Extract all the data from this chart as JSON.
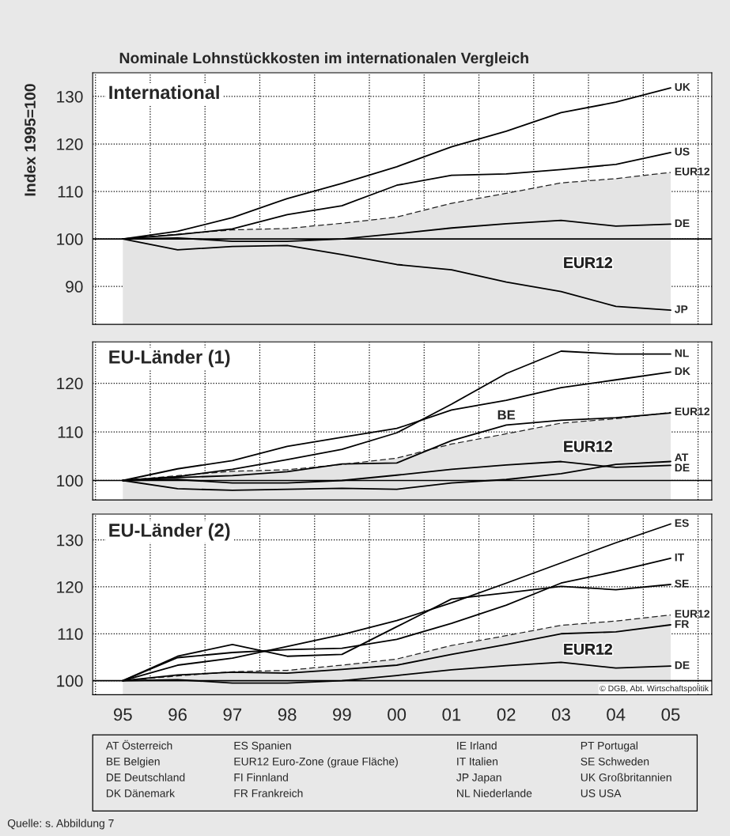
{
  "chart_data": [
    {
      "type": "line",
      "title": "Nominale Lohnstückkosten im internationalen Vergleich",
      "ylabel": "Index 1995=100",
      "subtitle": "International",
      "categories": [
        "95",
        "96",
        "97",
        "98",
        "99",
        "00",
        "01",
        "02",
        "03",
        "04",
        "05"
      ],
      "series": [
        {
          "type": "area",
          "name": "EUR12",
          "color": "#e4e4e4",
          "line_style": "dashed",
          "values": [
            100,
            101.0,
            101.9,
            102.2,
            103.3,
            104.6,
            107.5,
            109.6,
            111.8,
            112.7,
            114.0
          ]
        },
        {
          "name": "UK",
          "color": "#000000",
          "values": [
            100,
            101.6,
            104.5,
            108.5,
            111.7,
            115.2,
            119.4,
            122.7,
            126.6,
            128.8,
            131.8
          ]
        },
        {
          "name": "US",
          "color": "#000000",
          "values": [
            100,
            100.9,
            102.1,
            105.1,
            107.0,
            111.3,
            113.4,
            113.7,
            114.6,
            115.7,
            118.2
          ]
        },
        {
          "name": "DE",
          "color": "#000000",
          "values": [
            100,
            100.2,
            99.5,
            99.5,
            100,
            101.1,
            102.3,
            103.2,
            103.9,
            102.7,
            103.1
          ]
        },
        {
          "name": "JP",
          "color": "#000000",
          "values": [
            100,
            97.7,
            98.4,
            98.6,
            96.7,
            94.6,
            93.5,
            90.9,
            88.9,
            85.8,
            85.0
          ]
        }
      ],
      "annotations": [
        "EUR12"
      ],
      "ref_lines": [
        {
          "axis": "y",
          "value": 100
        }
      ],
      "ylim": [
        82,
        135
      ],
      "yticks": [
        90,
        100,
        110,
        120,
        130
      ],
      "grid": true,
      "tick_labels": "y"
    },
    {
      "type": "line",
      "subtitle": "EU-Länder (1)",
      "categories": [
        "95",
        "96",
        "97",
        "98",
        "99",
        "00",
        "01",
        "02",
        "03",
        "04",
        "05"
      ],
      "series": [
        {
          "type": "area",
          "name": "EUR12",
          "color": "#e4e4e4",
          "line_style": "dashed",
          "values": [
            100,
            101.0,
            101.9,
            102.2,
            103.3,
            104.6,
            107.5,
            109.6,
            111.8,
            112.7,
            114.0
          ]
        },
        {
          "name": "NL",
          "color": "#000000",
          "values": [
            100,
            100.8,
            102.3,
            104.3,
            106.4,
            109.8,
            115.7,
            122.0,
            126.6,
            126.0,
            126.0
          ]
        },
        {
          "name": "DK",
          "color": "#000000",
          "values": [
            100,
            102.4,
            104.1,
            107.0,
            108.9,
            110.7,
            114.5,
            116.5,
            119.1,
            120.7,
            122.3
          ]
        },
        {
          "color": "#000000",
          "values": [
            100,
            100.6,
            101.0,
            101.8,
            103.4,
            103.6,
            108.2,
            111.4,
            112.4,
            112.9,
            113.9
          ]
        },
        {
          "name": "AT",
          "color": "#000000",
          "values": [
            100,
            98.3,
            98.0,
            98.2,
            98.4,
            98.2,
            99.5,
            100.2,
            101.4,
            103.3,
            103.9
          ]
        },
        {
          "name": "DE",
          "color": "#000000",
          "values": [
            100,
            100.2,
            99.5,
            99.5,
            100,
            101.1,
            102.3,
            103.2,
            103.9,
            102.7,
            103.1
          ]
        }
      ],
      "annotations": [
        "EUR12",
        {
          "text": "BE",
          "x": "02",
          "y": 112
        }
      ],
      "ref_lines": [
        {
          "axis": "y",
          "value": 100
        }
      ],
      "ylim": [
        96,
        128.5
      ],
      "yticks": [
        100,
        110,
        120
      ],
      "grid": true,
      "tick_labels": "y"
    },
    {
      "type": "line",
      "subtitle": "EU-Länder (2)",
      "categories": [
        "95",
        "96",
        "97",
        "98",
        "99",
        "00",
        "01",
        "02",
        "03",
        "04",
        "05"
      ],
      "series": [
        {
          "type": "area",
          "name": "EUR12",
          "color": "#e4e4e4",
          "line_style": "dashed",
          "values": [
            100,
            101.0,
            101.9,
            102.2,
            103.3,
            104.6,
            107.5,
            109.6,
            111.8,
            112.7,
            114.0
          ]
        },
        {
          "name": "ES",
          "color": "#000000",
          "values": [
            100,
            103.3,
            104.8,
            107.3,
            109.8,
            112.8,
            116.6,
            120.8,
            125.1,
            129.4,
            133.4
          ]
        },
        {
          "name": "IT",
          "color": "#000000",
          "values": [
            100,
            104.9,
            106.0,
            106.6,
            106.9,
            108.8,
            112.2,
            116.1,
            120.8,
            123.3,
            126.1
          ]
        },
        {
          "name": "SE",
          "color": "#000000",
          "values": [
            100,
            105.2,
            107.7,
            105.2,
            105.6,
            111.5,
            117.4,
            118.7,
            120.1,
            119.4,
            120.5
          ]
        },
        {
          "name": "FR",
          "color": "#000000",
          "values": [
            100,
            101.2,
            101.8,
            101.6,
            102.4,
            103.3,
            105.6,
            107.7,
            110.0,
            110.4,
            111.9
          ]
        },
        {
          "name": "DE",
          "color": "#000000",
          "values": [
            100,
            100.2,
            99.5,
            99.5,
            100,
            101.1,
            102.3,
            103.2,
            103.9,
            102.7,
            103.1
          ]
        }
      ],
      "annotations": [
        "EUR12",
        "© DGB, Abt. Wirtschaftspolitik",
        "Quelle: s. Abbildung 7",
        "AT Österreich",
        "BE Belgien",
        "DE Deutschland",
        "DK Dänemark",
        "ES Spanien",
        "EUR12 Euro-Zone (graue Fläche)",
        "FI Finnland",
        "FR Frankreich",
        "IE Irland",
        "IT Italien",
        "JP Japan",
        "NL Niederlande",
        "PT Portugal",
        "SE Schweden",
        "UK Großbritannien",
        "US USA"
      ],
      "ref_lines": [
        {
          "axis": "y",
          "value": 100
        }
      ],
      "ylim": [
        97,
        135.5
      ],
      "yticks": [
        100,
        110,
        120,
        130
      ],
      "grid": true
    }
  ]
}
